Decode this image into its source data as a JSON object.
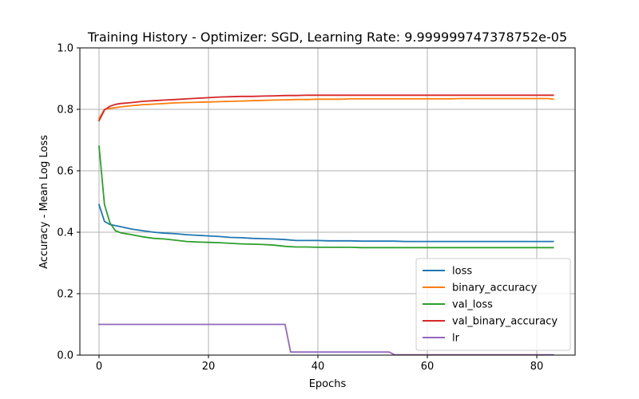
{
  "chart_data": {
    "type": "line",
    "title": "Training History - Optimizer: SGD, Learning Rate: 9.999999747378752e-05",
    "xlabel": "Epochs",
    "ylabel": "Accuracy - Mean Log Loss",
    "xlim": [
      -3.5,
      87
    ],
    "ylim": [
      0.0,
      1.0
    ],
    "xticks": [
      0,
      20,
      40,
      60,
      80
    ],
    "yticks": [
      0.0,
      0.2,
      0.4,
      0.6,
      0.8,
      1.0
    ],
    "xtick_labels": [
      "0",
      "20",
      "40",
      "60",
      "80"
    ],
    "ytick_labels": [
      "0.0",
      "0.2",
      "0.4",
      "0.6",
      "0.8",
      "1.0"
    ],
    "grid": true,
    "legend_position": "bottom-right",
    "series": [
      {
        "name": "loss",
        "color": "#1f77b4",
        "x": [
          0,
          1,
          2,
          4,
          6,
          8,
          10,
          12,
          14,
          16,
          18,
          20,
          22,
          24,
          26,
          28,
          30,
          32,
          34,
          36,
          38,
          40,
          42,
          44,
          46,
          48,
          50,
          52,
          54,
          56,
          58,
          60,
          62,
          64,
          66,
          68,
          70,
          72,
          74,
          76,
          78,
          80,
          82,
          83
        ],
        "y": [
          0.49,
          0.435,
          0.425,
          0.418,
          0.41,
          0.405,
          0.4,
          0.397,
          0.395,
          0.392,
          0.39,
          0.388,
          0.386,
          0.383,
          0.382,
          0.38,
          0.379,
          0.378,
          0.376,
          0.373,
          0.373,
          0.373,
          0.372,
          0.372,
          0.372,
          0.371,
          0.371,
          0.371,
          0.371,
          0.37,
          0.37,
          0.37,
          0.37,
          0.37,
          0.37,
          0.37,
          0.37,
          0.37,
          0.37,
          0.37,
          0.37,
          0.37,
          0.37,
          0.37
        ]
      },
      {
        "name": "binary_accuracy",
        "color": "#ff7f0e",
        "x": [
          0,
          1,
          2,
          4,
          6,
          8,
          10,
          12,
          14,
          16,
          18,
          20,
          22,
          24,
          26,
          28,
          30,
          32,
          34,
          36,
          38,
          40,
          42,
          44,
          46,
          48,
          50,
          52,
          54,
          56,
          58,
          60,
          62,
          64,
          66,
          68,
          70,
          72,
          74,
          76,
          78,
          80,
          82,
          83
        ],
        "y": [
          0.77,
          0.8,
          0.803,
          0.808,
          0.812,
          0.815,
          0.817,
          0.819,
          0.821,
          0.822,
          0.823,
          0.824,
          0.825,
          0.826,
          0.827,
          0.828,
          0.829,
          0.83,
          0.831,
          0.832,
          0.832,
          0.833,
          0.833,
          0.833,
          0.834,
          0.834,
          0.834,
          0.834,
          0.834,
          0.834,
          0.834,
          0.834,
          0.834,
          0.834,
          0.835,
          0.835,
          0.835,
          0.835,
          0.835,
          0.835,
          0.835,
          0.835,
          0.835,
          0.833
        ]
      },
      {
        "name": "val_loss",
        "color": "#2ca02c",
        "x": [
          0,
          1,
          2,
          3,
          4,
          6,
          8,
          10,
          12,
          14,
          16,
          18,
          20,
          22,
          24,
          26,
          28,
          30,
          32,
          34,
          36,
          38,
          40,
          42,
          44,
          46,
          48,
          50,
          52,
          54,
          56,
          58,
          60,
          62,
          64,
          66,
          68,
          70,
          72,
          74,
          76,
          78,
          80,
          82,
          83
        ],
        "y": [
          0.68,
          0.49,
          0.43,
          0.405,
          0.398,
          0.392,
          0.385,
          0.38,
          0.378,
          0.374,
          0.37,
          0.368,
          0.367,
          0.366,
          0.364,
          0.362,
          0.361,
          0.36,
          0.358,
          0.354,
          0.352,
          0.352,
          0.351,
          0.351,
          0.351,
          0.351,
          0.35,
          0.35,
          0.35,
          0.35,
          0.35,
          0.35,
          0.35,
          0.35,
          0.35,
          0.35,
          0.35,
          0.35,
          0.35,
          0.35,
          0.35,
          0.35,
          0.35,
          0.35,
          0.35
        ]
      },
      {
        "name": "val_binary_accuracy",
        "color": "#d62728",
        "x": [
          0,
          1,
          2,
          3,
          4,
          6,
          8,
          10,
          12,
          14,
          16,
          18,
          20,
          22,
          24,
          26,
          28,
          30,
          32,
          34,
          36,
          38,
          40,
          42,
          44,
          46,
          48,
          50,
          52,
          54,
          56,
          58,
          60,
          62,
          64,
          66,
          68,
          70,
          72,
          74,
          76,
          78,
          80,
          82,
          83
        ],
        "y": [
          0.763,
          0.798,
          0.81,
          0.816,
          0.819,
          0.822,
          0.826,
          0.828,
          0.83,
          0.832,
          0.834,
          0.836,
          0.838,
          0.84,
          0.841,
          0.842,
          0.842,
          0.843,
          0.844,
          0.845,
          0.845,
          0.846,
          0.846,
          0.846,
          0.846,
          0.846,
          0.846,
          0.846,
          0.846,
          0.846,
          0.846,
          0.846,
          0.846,
          0.846,
          0.846,
          0.846,
          0.846,
          0.846,
          0.846,
          0.846,
          0.846,
          0.846,
          0.846,
          0.846,
          0.846
        ]
      },
      {
        "name": "lr",
        "color": "#9467bd",
        "x": [
          0,
          34,
          35,
          53,
          54,
          83
        ],
        "y": [
          0.1,
          0.1,
          0.01,
          0.01,
          0.001,
          0.001
        ]
      }
    ]
  }
}
